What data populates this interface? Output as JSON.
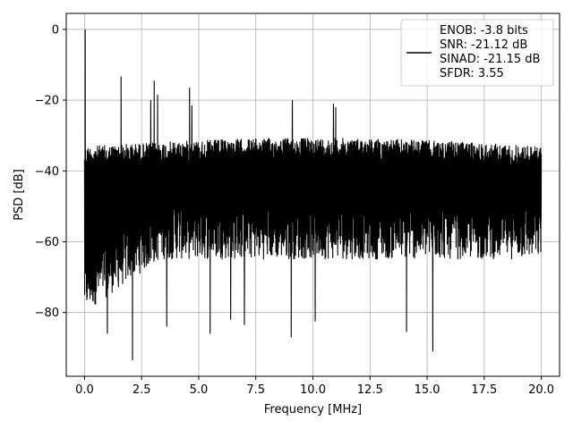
{
  "chart_data": {
    "type": "line",
    "title": "",
    "xlabel": "Frequency [MHz]",
    "ylabel": "PSD [dB]",
    "xlim": [
      -0.8,
      20.8
    ],
    "ylim": [
      -98,
      4.5
    ],
    "xticks": [
      0.0,
      2.5,
      5.0,
      7.5,
      10.0,
      12.5,
      15.0,
      17.5,
      20.0
    ],
    "xtick_labels": [
      "0.0",
      "2.5",
      "5.0",
      "7.5",
      "10.0",
      "12.5",
      "15.0",
      "17.5",
      "20.0"
    ],
    "yticks": [
      0,
      -20,
      -40,
      -60,
      -80
    ],
    "ytick_labels": [
      "0",
      "−20",
      "−40",
      "−60",
      "−80"
    ],
    "grid": true,
    "legend_position": "top-right",
    "legend_entries": [
      "ENOB: -3.8 bits",
      "SNR: -21.12 dB",
      "SINAD: -21.15 dB",
      "SFDR: 3.55"
    ],
    "series": [
      {
        "color": "#000000",
        "x_range": [
          0.0,
          20.0
        ],
        "noise_floor_upper_db": [
          -33,
          -31
        ],
        "noise_floor_lower_db": [
          -80,
          -65
        ],
        "peaks": [
          {
            "x": 0.03,
            "y": 0.0
          },
          {
            "x": 1.6,
            "y": -13.3
          },
          {
            "x": 3.05,
            "y": -14.5
          },
          {
            "x": 3.2,
            "y": -18.5
          },
          {
            "x": 2.9,
            "y": -20.0
          },
          {
            "x": 4.6,
            "y": -16.5
          },
          {
            "x": 4.7,
            "y": -21.5
          },
          {
            "x": 9.1,
            "y": -20.0
          },
          {
            "x": 10.9,
            "y": -21.0
          },
          {
            "x": 11.0,
            "y": -22.0
          }
        ],
        "troughs": [
          {
            "x": 2.1,
            "y": -93.5
          },
          {
            "x": 15.25,
            "y": -91.0
          },
          {
            "x": 9.05,
            "y": -87.0
          },
          {
            "x": 5.5,
            "y": -86.0
          },
          {
            "x": 1.0,
            "y": -86.0
          },
          {
            "x": 14.1,
            "y": -85.5
          },
          {
            "x": 3.6,
            "y": -84.0
          },
          {
            "x": 7.0,
            "y": -83.5
          },
          {
            "x": 10.1,
            "y": -82.5
          },
          {
            "x": 6.4,
            "y": -82.0
          }
        ]
      }
    ]
  }
}
